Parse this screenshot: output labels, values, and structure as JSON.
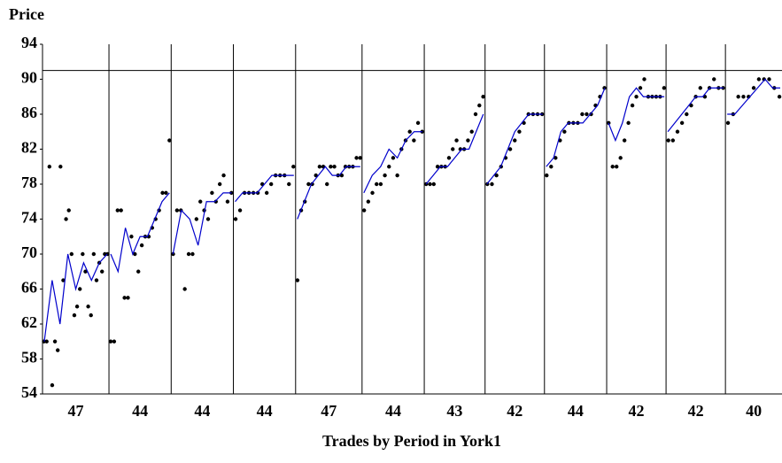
{
  "chart_data": {
    "type": "scatter",
    "title": "Price",
    "xlabel": "Trades by Period in York1",
    "ylim": [
      54,
      94
    ],
    "yticks": [
      54,
      58,
      62,
      66,
      70,
      74,
      78,
      82,
      86,
      90,
      94
    ],
    "reference_line": 91,
    "categories": [
      47,
      44,
      44,
      44,
      47,
      44,
      43,
      42,
      44,
      42,
      42,
      40
    ],
    "trade_color": "#000000",
    "average_color": "#0000cc",
    "trades": [
      [
        60,
        60,
        80,
        55,
        60,
        59,
        80,
        67,
        74,
        75,
        70,
        63,
        64,
        66,
        70,
        68,
        64,
        63,
        70,
        67,
        69,
        68,
        70,
        70
      ],
      [
        60,
        60,
        75,
        75,
        65,
        65,
        72,
        70,
        68,
        71,
        72,
        72,
        73,
        74,
        75,
        77,
        77,
        83
      ],
      [
        70,
        75,
        75,
        66,
        70,
        70,
        74,
        76,
        75,
        74,
        77,
        76,
        78,
        79,
        76,
        77
      ],
      [
        74,
        75,
        77,
        77,
        77,
        77,
        78,
        77,
        78,
        79,
        79,
        79,
        78,
        80
      ],
      [
        67,
        75,
        76,
        78,
        78,
        79,
        80,
        80,
        78,
        80,
        80,
        79,
        79,
        80,
        80,
        80,
        81,
        81
      ],
      [
        75,
        76,
        77,
        78,
        78,
        79,
        80,
        81,
        79,
        82,
        83,
        84,
        83,
        85,
        84
      ],
      [
        78,
        78,
        78,
        80,
        80,
        80,
        81,
        82,
        83,
        82,
        82,
        83,
        84,
        86,
        87,
        88
      ],
      [
        78,
        78,
        79,
        80,
        81,
        82,
        83,
        84,
        85,
        86,
        86,
        86,
        86
      ],
      [
        79,
        80,
        81,
        83,
        84,
        85,
        85,
        85,
        86,
        86,
        86,
        87,
        88,
        89
      ],
      [
        85,
        80,
        80,
        81,
        83,
        85,
        87,
        88,
        89,
        90,
        88,
        88,
        88,
        88,
        89
      ],
      [
        83,
        83,
        84,
        85,
        86,
        87,
        88,
        89,
        88,
        89,
        90,
        89,
        89
      ],
      [
        85,
        86,
        88,
        88,
        88,
        89,
        90,
        90,
        90,
        89,
        88
      ]
    ],
    "average": [
      [
        60,
        67,
        62,
        70,
        66,
        69,
        67,
        69,
        70
      ],
      [
        70,
        68,
        73,
        70,
        72,
        72,
        74,
        76,
        77
      ],
      [
        70,
        75,
        74,
        71,
        76,
        76,
        77,
        77
      ],
      [
        76,
        77,
        77,
        77,
        78,
        79,
        79,
        79,
        79
      ],
      [
        74,
        76,
        78,
        79,
        80,
        79,
        79,
        80,
        80,
        80
      ],
      [
        77,
        79,
        80,
        82,
        81,
        83,
        84,
        84
      ],
      [
        78,
        79,
        80,
        80,
        81,
        82,
        82,
        84,
        86
      ],
      [
        78,
        79,
        80,
        82,
        84,
        85,
        86,
        86,
        86
      ],
      [
        80,
        81,
        84,
        85,
        85,
        85,
        86,
        87,
        89
      ],
      [
        85,
        83,
        85,
        88,
        89,
        88,
        88,
        88,
        88
      ],
      [
        84,
        85,
        86,
        87,
        88,
        88,
        89,
        89,
        89
      ],
      [
        86,
        86,
        87,
        88,
        89,
        90,
        89,
        89
      ]
    ]
  }
}
